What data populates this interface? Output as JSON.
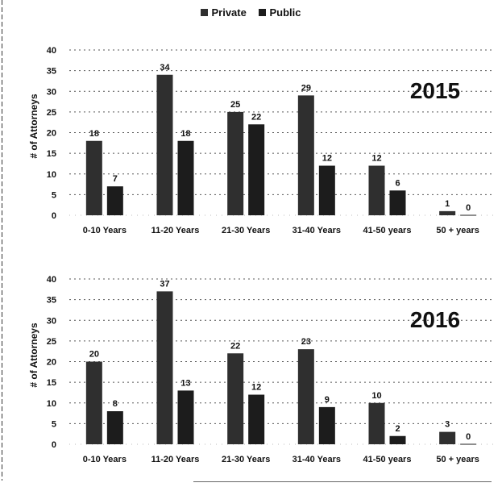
{
  "legend": {
    "private_label": "Private",
    "public_label": "Public"
  },
  "colors": {
    "private": "#2f2f2f",
    "public": "#1c1c1c",
    "gridline": "#555555",
    "text": "#111111"
  },
  "chart_data": [
    {
      "type": "bar",
      "title": "2015",
      "ylabel": "# of Attorneys",
      "xlabel": "",
      "ylim": [
        0,
        40
      ],
      "yticks": [
        0,
        5,
        10,
        15,
        20,
        25,
        30,
        35,
        40
      ],
      "categories": [
        "0-10 Years",
        "11-20 Years",
        "21-30 Years",
        "31-40 Years",
        "41-50 years",
        "50 + years"
      ],
      "series": [
        {
          "name": "Private",
          "values": [
            18,
            34,
            25,
            29,
            12,
            1
          ]
        },
        {
          "name": "Public",
          "values": [
            7,
            18,
            22,
            12,
            6,
            0
          ]
        }
      ],
      "grid": true,
      "legend_position": "top-center"
    },
    {
      "type": "bar",
      "title": "2016",
      "ylabel": "# of Attorneys",
      "xlabel": "",
      "ylim": [
        0,
        40
      ],
      "yticks": [
        0,
        5,
        10,
        15,
        20,
        25,
        30,
        35,
        40
      ],
      "categories": [
        "0-10 Years",
        "11-20 Years",
        "21-30 Years",
        "31-40 Years",
        "41-50 years",
        "50 + years"
      ],
      "series": [
        {
          "name": "Private",
          "values": [
            20,
            37,
            22,
            23,
            10,
            3
          ]
        },
        {
          "name": "Public",
          "values": [
            8,
            13,
            12,
            9,
            2,
            0
          ]
        }
      ],
      "grid": true,
      "legend_position": "top-center"
    }
  ]
}
